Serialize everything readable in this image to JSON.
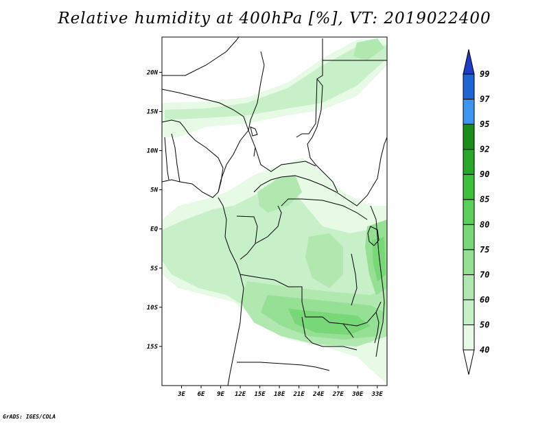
{
  "title": "Relative humidity at 400hPa [%], VT: 2019022400",
  "credit": "GrADS: IGES/COLA",
  "map": {
    "lon_range": [
      0,
      34.5
    ],
    "lat_range": [
      -20,
      24.5
    ],
    "lon_ticks": [
      "3E",
      "6E",
      "9E",
      "12E",
      "15E",
      "18E",
      "21E",
      "24E",
      "27E",
      "30E",
      "33E"
    ],
    "lat_ticks": [
      "20N",
      "15N",
      "10N",
      "5N",
      "EQ",
      "5S",
      "10S",
      "15S"
    ]
  },
  "colorbar": {
    "levels": [
      "40",
      "50",
      "60",
      "70",
      "75",
      "80",
      "85",
      "90",
      "92",
      "95",
      "97",
      "99"
    ],
    "colors": [
      "#ffffff",
      "#e6fae6",
      "#c8f0c8",
      "#b0e8b0",
      "#96e096",
      "#78d878",
      "#5ad05a",
      "#3cc03c",
      "#28a828",
      "#1a8c1a",
      "#3c96f0",
      "#1e64d2",
      "#1e3cc8"
    ]
  },
  "field_colors": {
    "c40": "#e6fae6",
    "c50": "#c8f0c8",
    "c60": "#b0e8b0",
    "c70": "#96e096",
    "c75": "#78d878",
    "c80": "#5ad05a"
  }
}
